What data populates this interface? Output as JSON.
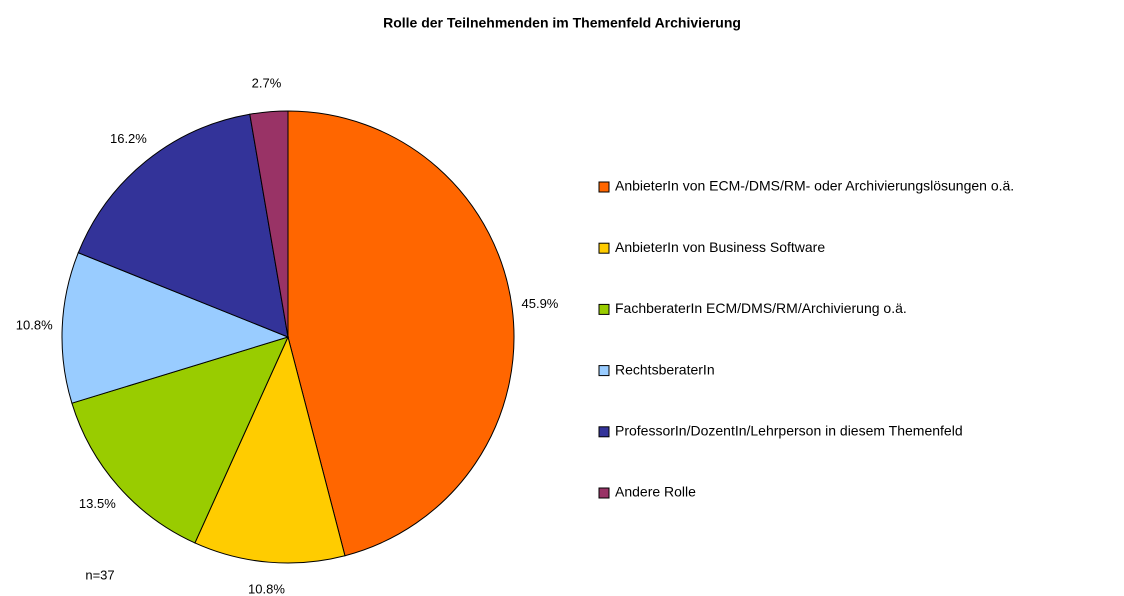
{
  "chart_data": {
    "type": "pie",
    "title": "Rolle der Teilnehmenden im Themenfeld Archivierung",
    "annotation": "n=37",
    "categories": [
      "AnbieterIn von ECM-/DMS/RM- oder Archivierungslösungen o.ä.",
      "AnbieterIn von Business Software",
      "FachberaterIn ECM/DMS/RM/Archivierung o.ä.",
      "RechtsberaterIn",
      "ProfessorIn/DozentIn/Lehrperson in diesem Themenfeld",
      "Andere Rolle"
    ],
    "values": [
      45.9,
      10.8,
      13.5,
      10.8,
      16.2,
      2.7
    ],
    "value_labels": [
      "45.9%",
      "10.8%",
      "13.5%",
      "10.8%",
      "16.2%",
      "2.7%"
    ],
    "colors": [
      "#ff6600",
      "#ffcc00",
      "#99cc00",
      "#99ccff",
      "#333399",
      "#993366"
    ],
    "legend": "right"
  }
}
